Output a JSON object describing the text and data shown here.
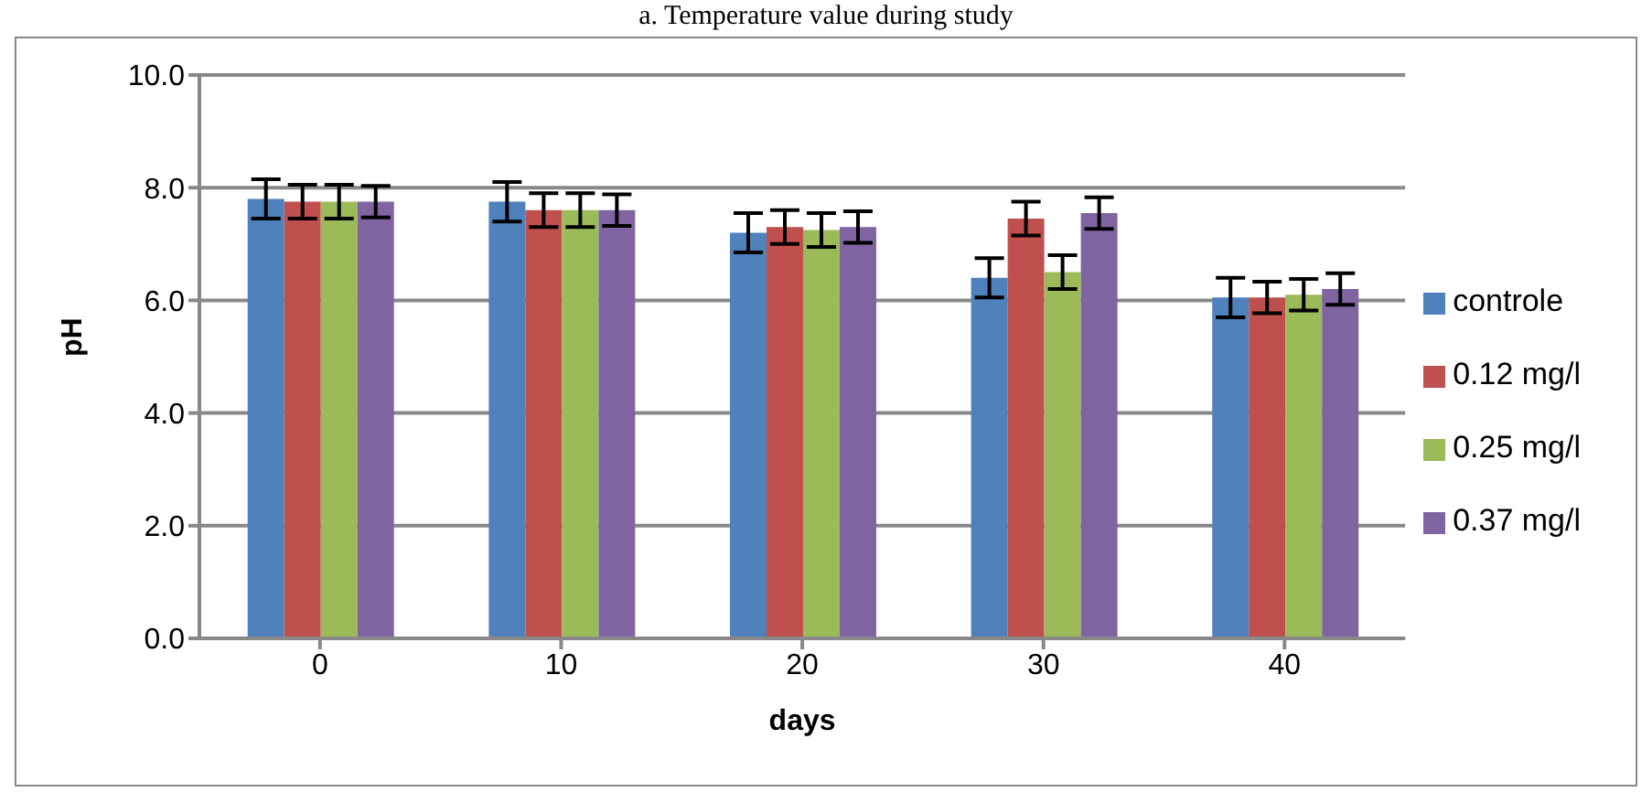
{
  "chart_data": {
    "type": "bar",
    "title": "a.    Temperature value during study",
    "xlabel": "days",
    "ylabel": "pH",
    "categories": [
      "0",
      "10",
      "20",
      "30",
      "40"
    ],
    "series": [
      {
        "name": "controle",
        "color": "#4f81bd",
        "values": [
          7.8,
          7.75,
          7.2,
          6.4,
          6.05
        ],
        "errors": [
          0.35,
          0.35,
          0.35,
          0.35,
          0.35
        ]
      },
      {
        "name": "0.12 mg/l",
        "color": "#c0504d",
        "values": [
          7.75,
          7.6,
          7.3,
          7.45,
          6.05
        ],
        "errors": [
          0.3,
          0.3,
          0.3,
          0.3,
          0.28
        ]
      },
      {
        "name": "0.25 mg/l",
        "color": "#9bbb59",
        "values": [
          7.75,
          7.6,
          7.25,
          6.5,
          6.1
        ],
        "errors": [
          0.3,
          0.3,
          0.3,
          0.3,
          0.28
        ]
      },
      {
        "name": "0.37 mg/l",
        "color": "#8064a2",
        "values": [
          7.75,
          7.6,
          7.3,
          7.55,
          6.2
        ],
        "errors": [
          0.28,
          0.28,
          0.28,
          0.28,
          0.28
        ]
      }
    ],
    "ylim": [
      0,
      10
    ],
    "yticks": [
      {
        "value": 0,
        "label": "0.0"
      },
      {
        "value": 2,
        "label": "2.0"
      },
      {
        "value": 4,
        "label": "4.0"
      },
      {
        "value": 6,
        "label": "6.0"
      },
      {
        "value": 8,
        "label": "8.0"
      },
      {
        "value": 10,
        "label": "10.0"
      }
    ],
    "grid": "y",
    "legend": "right"
  }
}
